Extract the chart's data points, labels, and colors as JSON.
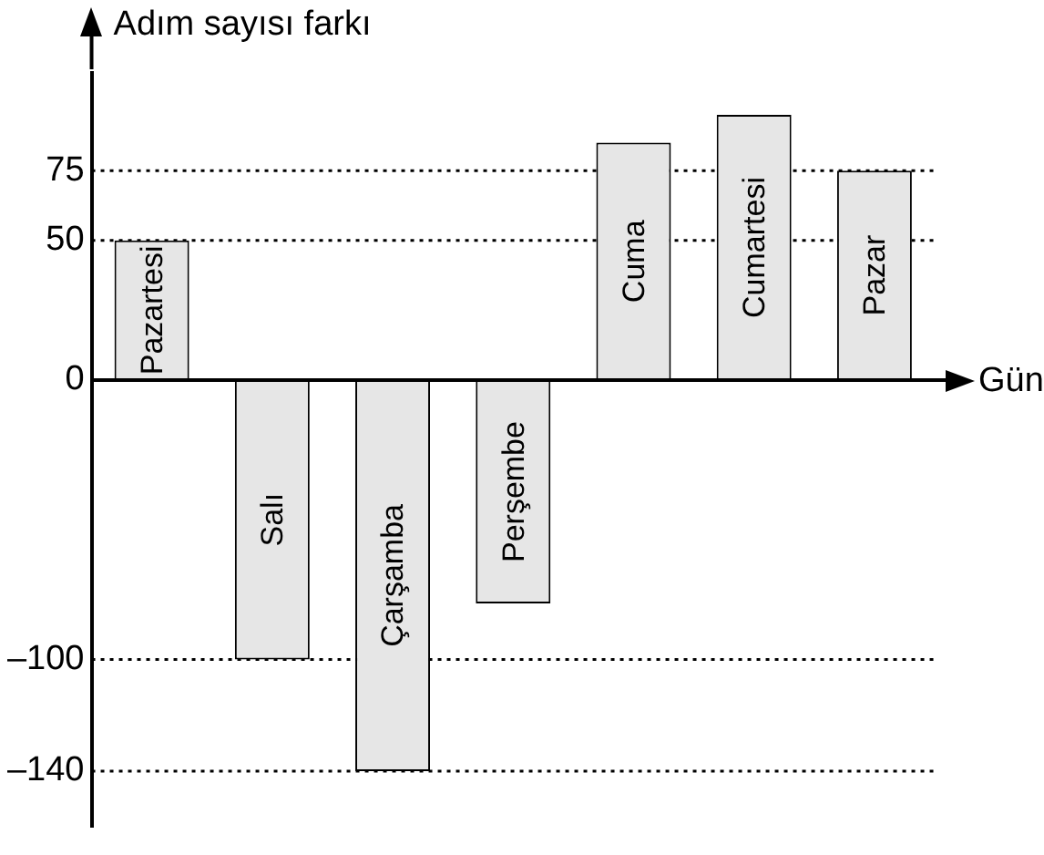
{
  "chart_data": {
    "type": "bar",
    "xlabel": "Gün",
    "ylabel": "Adım sayısı farkı",
    "categories": [
      "Pazartesi",
      "Salı",
      "Çarşamba",
      "Perşembe",
      "Cuma",
      "Cumartesi",
      "Pazar"
    ],
    "values": [
      50,
      -100,
      -140,
      -80,
      85,
      95,
      75
    ],
    "color": "#e6e6e6",
    "ylim": [
      -160,
      110
    ],
    "yticks": [
      {
        "value": 75,
        "label": "75"
      },
      {
        "value": 50,
        "label": "50"
      },
      {
        "value": 0,
        "label": "0"
      },
      {
        "value": -100,
        "label": "–100"
      },
      {
        "value": -140,
        "label": "–140"
      }
    ],
    "ref_lines": [
      {
        "axis": "y",
        "value": 75,
        "line_style": "dotted"
      },
      {
        "axis": "y",
        "value": 50,
        "line_style": "dotted"
      },
      {
        "axis": "y",
        "value": -100,
        "line_style": "dotted"
      },
      {
        "axis": "y",
        "value": -140,
        "line_style": "dotted"
      }
    ],
    "grid": false,
    "legend": false
  }
}
